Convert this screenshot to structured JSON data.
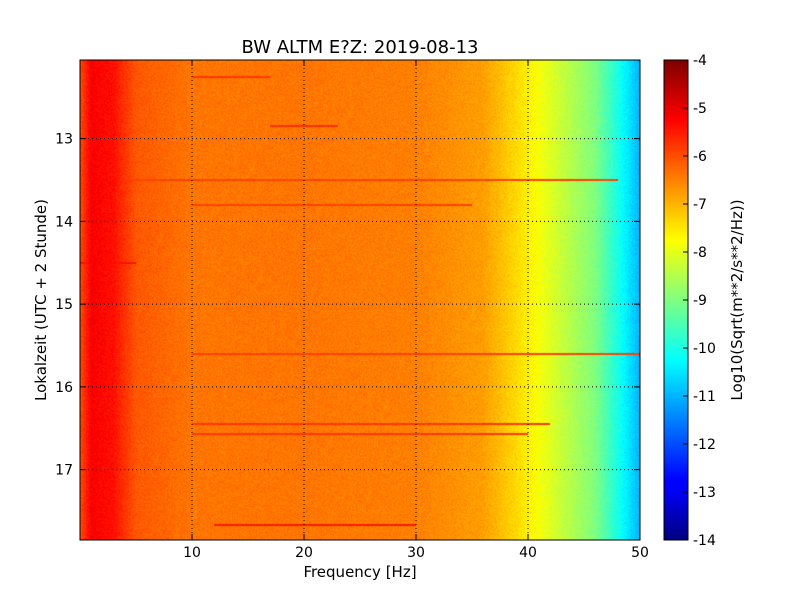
{
  "chart_data": {
    "type": "heatmap",
    "title": "BW ALTM E?Z: 2019-08-13",
    "xlabel": "Frequency [Hz]",
    "ylabel": "Lokalzeit (UTC + 2 Stunde)",
    "xlim": [
      0,
      50
    ],
    "ylim": [
      12.05,
      17.85
    ],
    "y_inverted": true,
    "xticks": [
      10,
      20,
      30,
      40,
      50
    ],
    "yticks": [
      13,
      14,
      15,
      16,
      17
    ],
    "grid": true,
    "grid_style": "dotted",
    "colormap": "jet",
    "colorbar": {
      "label": "Log10(Sqrt(m**2/s**2/Hz))",
      "range": [
        -14,
        -4
      ],
      "ticks": [
        -4,
        -5,
        -6,
        -7,
        -8,
        -9,
        -10,
        -11,
        -12,
        -13,
        -14
      ]
    },
    "profile_hz": [
      0,
      1,
      3,
      5,
      10,
      20,
      30,
      36,
      40,
      43,
      46,
      48,
      50
    ],
    "profile_log10": [
      -6.0,
      -5.2,
      -5.4,
      -6.1,
      -6.4,
      -6.4,
      -6.5,
      -6.8,
      -7.6,
      -8.3,
      -9.0,
      -10.0,
      -11.0
    ],
    "events": [
      {
        "time": 12.25,
        "f_from": 10,
        "f_to": 17,
        "log10": -5.8
      },
      {
        "time": 12.85,
        "f_from": 17,
        "f_to": 23,
        "log10": -5.7
      },
      {
        "time": 13.5,
        "f_from": 0,
        "f_to": 48,
        "log10": -5.9
      },
      {
        "time": 13.8,
        "f_from": 10,
        "f_to": 35,
        "log10": -5.9
      },
      {
        "time": 14.5,
        "f_from": 0,
        "f_to": 5,
        "log10": -5.4
      },
      {
        "time": 15.6,
        "f_from": 10,
        "f_to": 50,
        "log10": -5.9
      },
      {
        "time": 16.45,
        "f_from": 10,
        "f_to": 42,
        "log10": -5.8
      },
      {
        "time": 16.57,
        "f_from": 10,
        "f_to": 40,
        "log10": -5.8
      },
      {
        "time": 17.67,
        "f_from": 12,
        "f_to": 30,
        "log10": -5.5
      }
    ]
  }
}
